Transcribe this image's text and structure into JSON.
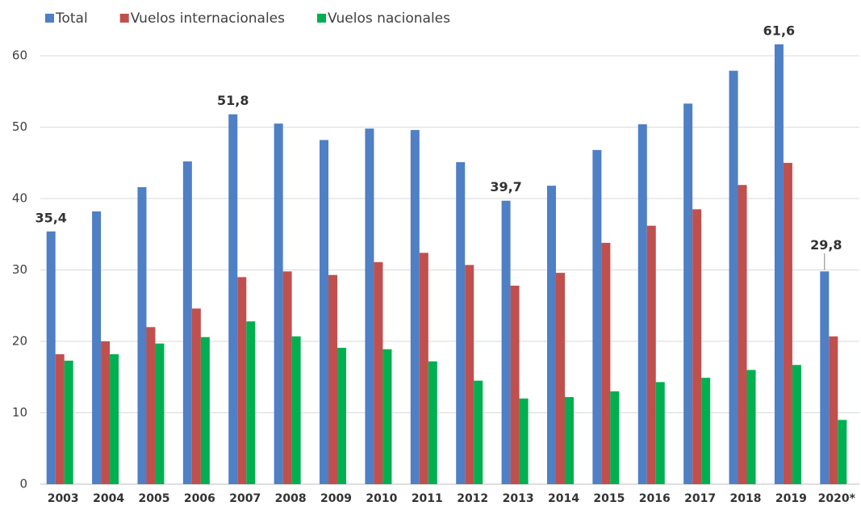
{
  "chart_data": {
    "type": "bar",
    "categories": [
      "2003",
      "2004",
      "2005",
      "2006",
      "2007",
      "2008",
      "2009",
      "2010",
      "2011",
      "2012",
      "2013",
      "2014",
      "2015",
      "2016",
      "2017",
      "2018",
      "2019",
      "2020*"
    ],
    "series": [
      {
        "name": "Total",
        "color": "#4f7fc4",
        "values": [
          35.4,
          38.2,
          41.6,
          45.2,
          51.8,
          50.5,
          48.2,
          49.8,
          49.6,
          45.1,
          39.7,
          41.8,
          46.8,
          50.4,
          53.3,
          57.9,
          61.6,
          29.8
        ],
        "value_labels": [
          "35,4",
          null,
          null,
          null,
          "51,8",
          null,
          null,
          null,
          null,
          null,
          "39,7",
          null,
          null,
          null,
          null,
          null,
          "61,6",
          "29,8"
        ]
      },
      {
        "name": "Vuelos internacionales",
        "color": "#c0504d",
        "values": [
          18.2,
          20.0,
          22.0,
          24.6,
          29.0,
          29.8,
          29.3,
          31.1,
          32.4,
          30.7,
          27.8,
          29.6,
          33.8,
          36.2,
          38.5,
          41.9,
          45.0,
          20.7
        ]
      },
      {
        "name": "Vuelos nacionales",
        "color": "#00b050",
        "values": [
          17.3,
          18.2,
          19.7,
          20.6,
          22.8,
          20.7,
          19.1,
          18.9,
          17.2,
          14.5,
          12.0,
          12.2,
          13.0,
          14.3,
          14.9,
          16.0,
          16.7,
          9.0
        ]
      }
    ],
    "ylim": [
      0,
      66
    ],
    "yticks": [
      0,
      10,
      20,
      30,
      40,
      50,
      60
    ],
    "grid": true,
    "legend": "top-left"
  }
}
